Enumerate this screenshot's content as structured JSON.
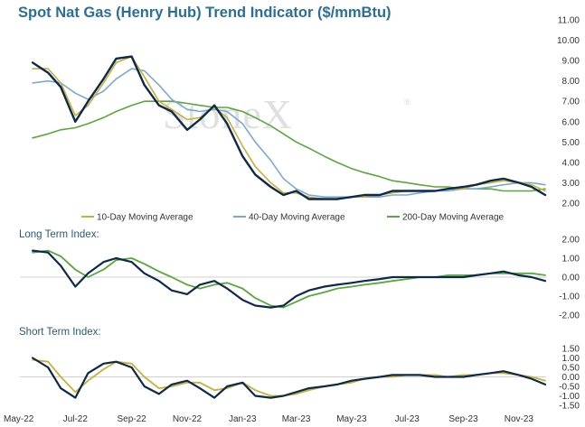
{
  "colors": {
    "title": "#2a6f97",
    "price": "#0d2a4a",
    "ma10": "#c8b03a",
    "ma40": "#7aaad4",
    "ma200": "#5aa83a"
  },
  "watermark": {
    "text": "StoneX",
    "mark": "®"
  },
  "chart_data": [
    {
      "type": "line",
      "title": "Spot Nat Gas (Henry Hub) Trend Indicator ($/mmBtu)",
      "ylim": [
        2.0,
        11.0
      ],
      "yticks": [
        "11.00",
        "10.00",
        "9.00",
        "8.00",
        "7.00",
        "6.00",
        "5.00",
        "4.00",
        "3.00",
        "2.00"
      ],
      "x": [
        "2022-05-15",
        "2022-06-01",
        "2022-06-15",
        "2022-07-01",
        "2022-07-15",
        "2022-08-01",
        "2022-08-15",
        "2022-09-01",
        "2022-09-15",
        "2022-10-01",
        "2022-10-15",
        "2022-11-01",
        "2022-11-15",
        "2022-12-01",
        "2022-12-15",
        "2023-01-01",
        "2023-01-15",
        "2023-02-01",
        "2023-02-15",
        "2023-03-01",
        "2023-03-15",
        "2023-04-01",
        "2023-04-15",
        "2023-05-01",
        "2023-05-15",
        "2023-06-01",
        "2023-06-15",
        "2023-07-01",
        "2023-07-15",
        "2023-08-01",
        "2023-08-15",
        "2023-09-01",
        "2023-09-15",
        "2023-10-01",
        "2023-10-15",
        "2023-11-01",
        "2023-11-15",
        "2023-11-30"
      ],
      "series": [
        {
          "name": "",
          "values": [
            8.9,
            8.4,
            7.7,
            6.0,
            7.0,
            8.1,
            9.1,
            9.2,
            7.8,
            6.8,
            6.5,
            5.6,
            6.1,
            6.8,
            5.9,
            4.3,
            3.4,
            2.8,
            2.4,
            2.6,
            2.2,
            2.2,
            2.2,
            2.3,
            2.4,
            2.4,
            2.6,
            2.6,
            2.6,
            2.6,
            2.7,
            2.8,
            2.9,
            3.1,
            3.2,
            3.0,
            2.8,
            2.4
          ]
        },
        {
          "name": "10-Day Moving Average",
          "values": [
            8.6,
            8.6,
            7.9,
            6.3,
            6.8,
            7.9,
            8.9,
            9.2,
            8.2,
            7.0,
            6.6,
            6.1,
            6.2,
            6.7,
            6.2,
            4.8,
            3.8,
            3.0,
            2.5,
            2.5,
            2.3,
            2.2,
            2.2,
            2.3,
            2.3,
            2.4,
            2.5,
            2.6,
            2.6,
            2.6,
            2.7,
            2.7,
            2.9,
            3.0,
            3.1,
            3.0,
            2.9,
            2.6
          ]
        },
        {
          "name": "40-Day Moving Average",
          "values": [
            7.9,
            8.0,
            7.9,
            7.4,
            7.1,
            7.5,
            8.1,
            8.6,
            8.5,
            7.8,
            7.1,
            6.6,
            6.5,
            6.6,
            6.5,
            5.9,
            5.0,
            4.1,
            3.2,
            2.7,
            2.4,
            2.3,
            2.3,
            2.3,
            2.3,
            2.3,
            2.4,
            2.4,
            2.5,
            2.6,
            2.6,
            2.7,
            2.7,
            2.8,
            2.9,
            3.0,
            3.0,
            2.9
          ]
        },
        {
          "name": "200-Day Moving Average",
          "values": [
            5.2,
            5.4,
            5.6,
            5.7,
            5.9,
            6.2,
            6.5,
            6.8,
            7.0,
            7.0,
            7.0,
            6.9,
            6.8,
            6.7,
            6.7,
            6.5,
            6.2,
            5.8,
            5.4,
            5.0,
            4.7,
            4.3,
            4.0,
            3.7,
            3.5,
            3.3,
            3.1,
            3.0,
            2.9,
            2.8,
            2.8,
            2.7,
            2.7,
            2.7,
            2.6,
            2.6,
            2.6,
            2.7
          ]
        }
      ]
    },
    {
      "type": "line",
      "title": "Long Term Index:",
      "ylim": [
        -2.0,
        2.0
      ],
      "yticks": [
        "2.00",
        "1.00",
        "0.00",
        "-1.00",
        "-2.00"
      ],
      "series": [
        {
          "name": "",
          "values": [
            1.4,
            1.3,
            0.6,
            -0.5,
            0.2,
            0.8,
            1.0,
            0.8,
            0.2,
            -0.2,
            -0.7,
            -0.9,
            -0.4,
            -0.2,
            -0.6,
            -1.2,
            -1.5,
            -1.6,
            -1.5,
            -1.0,
            -0.7,
            -0.5,
            -0.4,
            -0.3,
            -0.2,
            -0.1,
            0.0,
            0.0,
            0.0,
            0.0,
            0.0,
            0.0,
            0.1,
            0.2,
            0.3,
            0.1,
            0.0,
            -0.2
          ]
        },
        {
          "name": "",
          "values": [
            1.3,
            1.4,
            1.1,
            0.4,
            0.0,
            0.4,
            0.9,
            1.0,
            0.7,
            0.3,
            0.0,
            -0.4,
            -0.6,
            -0.4,
            -0.3,
            -0.6,
            -1.1,
            -1.5,
            -1.6,
            -1.3,
            -1.0,
            -0.8,
            -0.6,
            -0.5,
            -0.4,
            -0.3,
            -0.2,
            -0.1,
            0.0,
            0.0,
            0.1,
            0.1,
            0.1,
            0.2,
            0.2,
            0.2,
            0.2,
            0.1
          ]
        }
      ]
    },
    {
      "type": "line",
      "title": "Short Term Index:",
      "ylim": [
        -1.5,
        1.5
      ],
      "yticks": [
        "1.50",
        "1.00",
        "0.50",
        "0.00",
        "-0.50",
        "-1.00",
        "-1.50"
      ],
      "series": [
        {
          "name": "",
          "values": [
            1.0,
            0.5,
            -0.6,
            -1.1,
            0.2,
            0.7,
            0.8,
            0.5,
            -0.5,
            -0.9,
            -0.4,
            -0.2,
            -0.6,
            -1.1,
            -0.5,
            -0.3,
            -1.0,
            -1.1,
            -1.0,
            -0.8,
            -0.6,
            -0.5,
            -0.4,
            -0.2,
            -0.1,
            0.0,
            0.1,
            0.1,
            0.1,
            0.0,
            0.0,
            0.0,
            0.1,
            0.2,
            0.3,
            0.1,
            -0.1,
            -0.4
          ]
        },
        {
          "name": "",
          "values": [
            0.9,
            0.8,
            0.0,
            -0.8,
            -0.2,
            0.4,
            0.8,
            0.7,
            0.0,
            -0.6,
            -0.5,
            -0.3,
            -0.3,
            -0.7,
            -0.6,
            -0.3,
            -0.7,
            -1.0,
            -1.0,
            -0.9,
            -0.7,
            -0.5,
            -0.4,
            -0.3,
            -0.1,
            0.0,
            0.0,
            0.1,
            0.1,
            0.1,
            0.0,
            0.1,
            0.1,
            0.2,
            0.2,
            0.1,
            0.0,
            -0.2
          ]
        }
      ]
    }
  ],
  "x_axis": {
    "ticks": [
      {
        "date": "2022-05-01",
        "label": "May-22"
      },
      {
        "date": "2022-07-01",
        "label": "Jul-22"
      },
      {
        "date": "2022-09-01",
        "label": "Sep-22"
      },
      {
        "date": "2022-11-01",
        "label": "Nov-22"
      },
      {
        "date": "2023-01-01",
        "label": "Jan-23"
      },
      {
        "date": "2023-03-01",
        "label": "Mar-23"
      },
      {
        "date": "2023-05-01",
        "label": "May-23"
      },
      {
        "date": "2023-07-01",
        "label": "Jul-23"
      },
      {
        "date": "2023-09-01",
        "label": "Sep-23"
      },
      {
        "date": "2023-11-01",
        "label": "Nov-23"
      }
    ]
  }
}
